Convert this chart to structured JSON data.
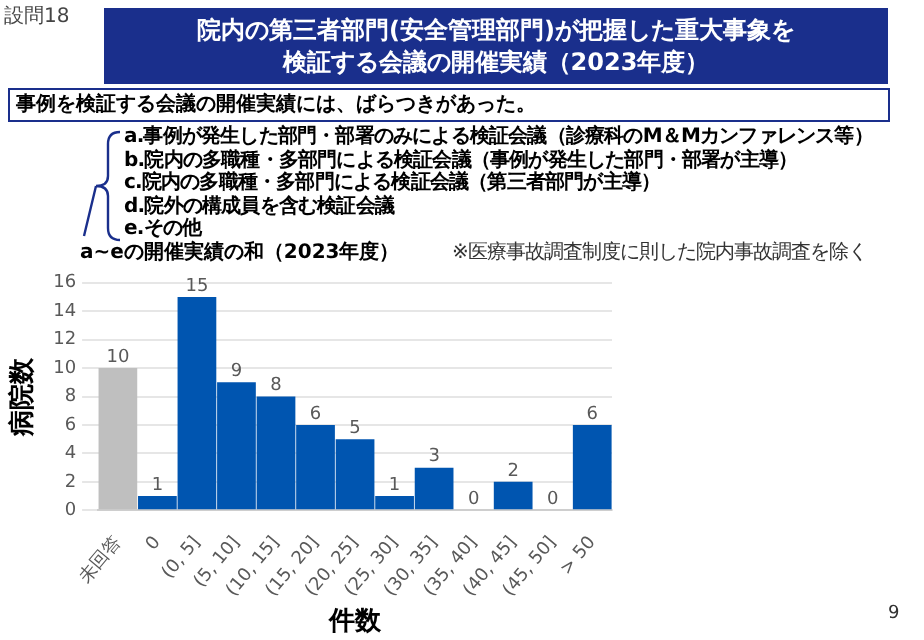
{
  "chart_data": {
    "type": "bar",
    "title": "院内の第三者部門(安全管理部門)が把握した重大事象を検証する会議の開催実績（2023年度）",
    "subtitle": "事例を検証する会議の開催実績には、ばらつきがあった。",
    "xlabel": "件数",
    "ylabel": "病院数",
    "categories": [
      "未回答",
      "0",
      "(0, 5]",
      "(5, 10]",
      "(10, 15]",
      "(15, 20]",
      "(20, 25]",
      "(25, 30]",
      "(30, 35]",
      "(35, 40]",
      "(40, 45]",
      "(45, 50]",
      "> 50"
    ],
    "values": [
      10,
      1,
      15,
      9,
      8,
      6,
      5,
      1,
      3,
      0,
      2,
      0,
      6
    ],
    "colors": [
      "#bfbfbf",
      "#0055b0",
      "#0055b0",
      "#0055b0",
      "#0055b0",
      "#0055b0",
      "#0055b0",
      "#0055b0",
      "#0055b0",
      "#0055b0",
      "#0055b0",
      "#0055b0",
      "#0055b0"
    ],
    "ylim": [
      0,
      16
    ],
    "yticks": [
      0,
      2,
      4,
      6,
      8,
      10,
      12,
      14,
      16
    ],
    "grid": "y",
    "data_labels": true,
    "legend": false,
    "annotations": [
      "設問18",
      "a.事例が発生した部門・部署のみによる検証会議（診療科のM＆Mカンファレンス等）",
      "b.院内の多職種・多部門による検証会議（事例が発生した部門・部署が主導）",
      "c.院内の多職種・多部門による検証会議（第三者部門が主導）",
      "d.院外の構成員を含む検証会議",
      "e.その他",
      "a~eの開催実績の和（2023年度）",
      "※医療事故調査制度に則した院内事故調査を除く",
      "9"
    ]
  }
}
